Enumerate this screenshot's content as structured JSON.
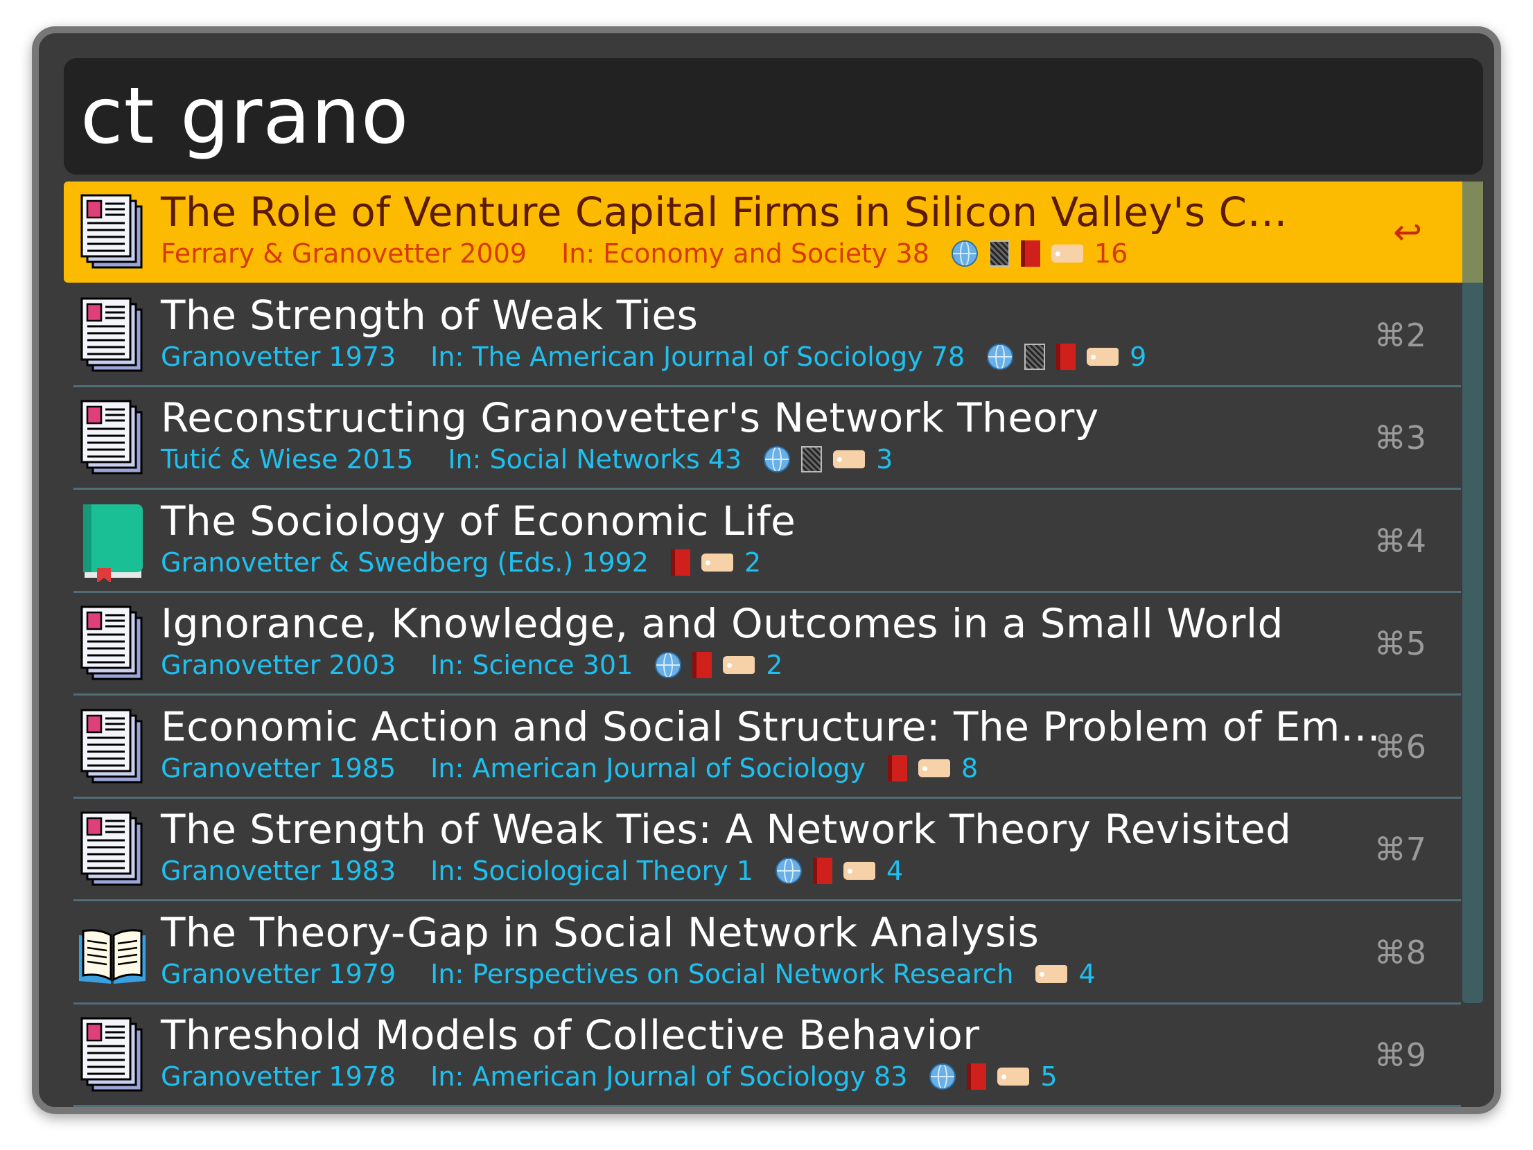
{
  "search": {
    "query": "ct grano"
  },
  "results": [
    {
      "icon": "newspaper-icon",
      "title": "The Role of Venture Capital Firms in Silicon Valley's C…",
      "authors": "Ferrary & Granovetter 2009",
      "in": "In: Economy and Society 38",
      "icons": [
        "globe-icon",
        "notebook-icon",
        "red-book-icon",
        "tag-icon"
      ],
      "count": "16",
      "shortcut": "↩",
      "selected": true
    },
    {
      "icon": "newspaper-icon",
      "title": "The Strength of Weak Ties",
      "authors": "Granovetter 1973",
      "in": "In: The American Journal of Sociology 78",
      "icons": [
        "globe-icon",
        "notebook-icon",
        "red-book-icon",
        "tag-icon"
      ],
      "count": "9",
      "shortcut": "⌘2"
    },
    {
      "icon": "newspaper-icon",
      "title": "Reconstructing Granovetter's Network Theory",
      "authors": "Tutić & Wiese 2015",
      "in": "In: Social Networks 43",
      "icons": [
        "globe-icon",
        "notebook-icon",
        "tag-icon"
      ],
      "count": "3",
      "shortcut": "⌘3"
    },
    {
      "icon": "green-book-icon",
      "title": "The Sociology of Economic Life",
      "authors": "Granovetter & Swedberg (Eds.) 1992",
      "in": "",
      "icons": [
        "red-book-icon",
        "tag-icon"
      ],
      "count": "2",
      "shortcut": "⌘4"
    },
    {
      "icon": "newspaper-icon",
      "title": "Ignorance, Knowledge, and Outcomes in a Small World",
      "authors": "Granovetter 2003",
      "in": "In: Science 301",
      "icons": [
        "globe-icon",
        "red-book-icon",
        "tag-icon"
      ],
      "count": "2",
      "shortcut": "⌘5"
    },
    {
      "icon": "newspaper-icon",
      "title": "Economic Action and Social Structure: The Problem of Em…",
      "authors": "Granovetter 1985",
      "in": "In: American Journal of Sociology",
      "icons": [
        "red-book-icon",
        "tag-icon"
      ],
      "count": "8",
      "shortcut": "⌘6"
    },
    {
      "icon": "newspaper-icon",
      "title": "The Strength of Weak Ties: A Network Theory Revisited",
      "authors": "Granovetter 1983",
      "in": "In: Sociological Theory 1",
      "icons": [
        "globe-icon",
        "red-book-icon",
        "tag-icon"
      ],
      "count": "4",
      "shortcut": "⌘7"
    },
    {
      "icon": "open-book-icon",
      "title": "The Theory-Gap in Social Network Analysis",
      "authors": "Granovetter 1979",
      "in": "In: Perspectives on Social Network Research",
      "icons": [
        "tag-icon"
      ],
      "count": "4",
      "shortcut": "⌘8"
    },
    {
      "icon": "newspaper-icon",
      "title": "Threshold Models of Collective Behavior",
      "authors": "Granovetter 1978",
      "in": "In: American Journal of Sociology 83",
      "icons": [
        "globe-icon",
        "red-book-icon",
        "tag-icon"
      ],
      "count": "5",
      "shortcut": "⌘9"
    }
  ]
}
